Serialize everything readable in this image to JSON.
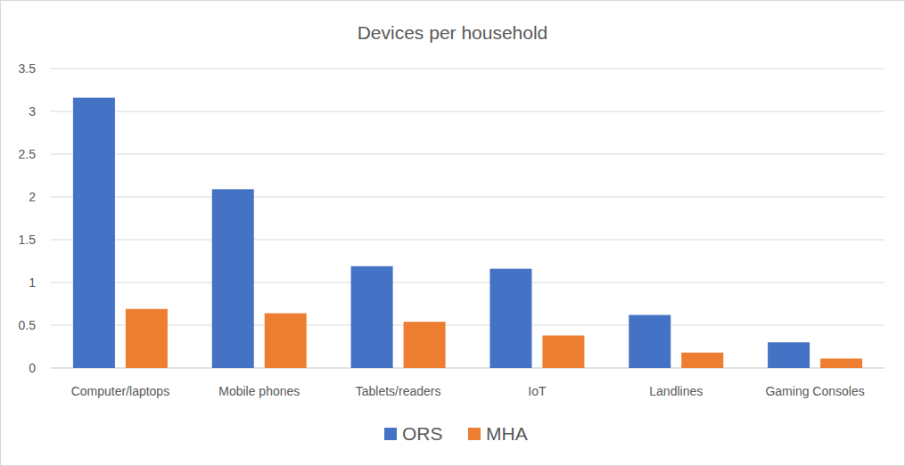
{
  "chart_data": {
    "type": "bar",
    "title": "Devices per household",
    "categories": [
      "Computer/laptops",
      "Mobile phones",
      "Tablets/readers",
      "IoT",
      "Landlines",
      "Gaming Consoles"
    ],
    "series": [
      {
        "name": "ORS",
        "color": "#4472c4",
        "values": [
          3.16,
          2.09,
          1.19,
          1.16,
          0.62,
          0.3
        ]
      },
      {
        "name": "MHA",
        "color": "#ed7d31",
        "values": [
          0.69,
          0.64,
          0.54,
          0.38,
          0.18,
          0.11
        ]
      }
    ],
    "ylim": [
      0,
      3.5
    ],
    "yticks": [
      0,
      0.5,
      1,
      1.5,
      2,
      2.5,
      3,
      3.5
    ],
    "grid": true,
    "legend": "bottom"
  }
}
